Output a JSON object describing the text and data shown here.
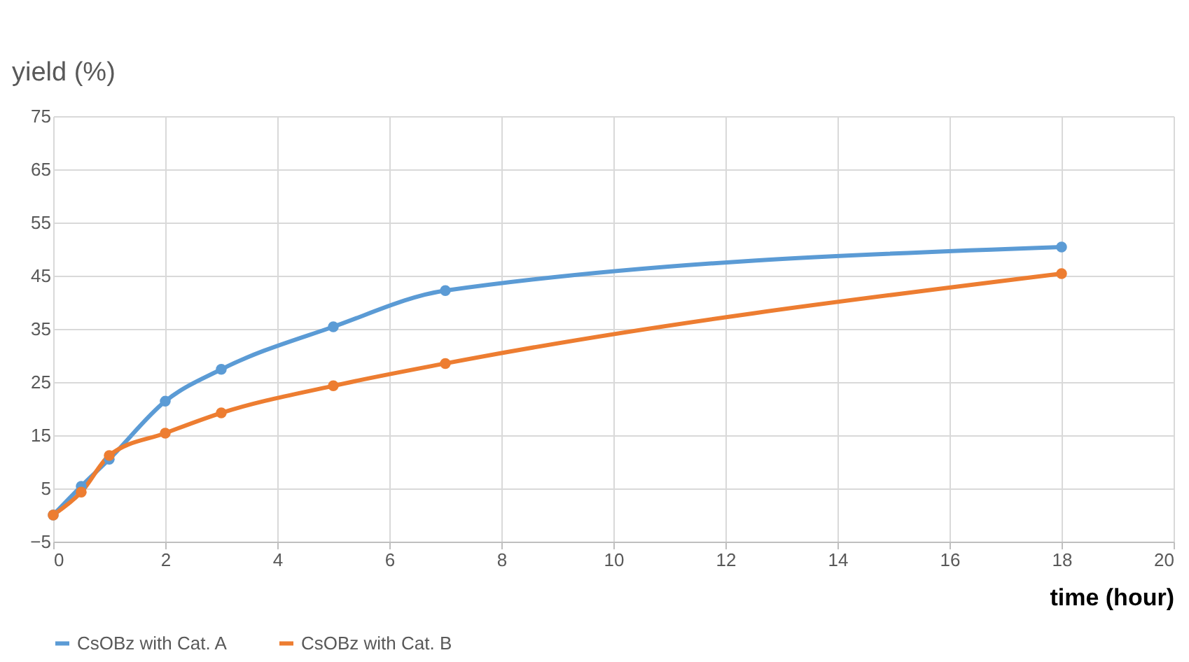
{
  "chart_data": {
    "type": "line",
    "xlabel": "time (hour)",
    "ylabel": "yield (%)",
    "x": [
      0,
      0.5,
      1,
      2,
      3,
      5,
      7,
      18
    ],
    "series": [
      {
        "name": "CsOBz with Cat. A",
        "color": "#5b9bd5",
        "values": [
          0,
          5.4,
          10.5,
          21.4,
          27.4,
          35.4,
          42.2,
          50.4
        ]
      },
      {
        "name": "CsOBz with Cat. B",
        "color": "#ed7d31",
        "values": [
          0,
          4.3,
          11.2,
          15.4,
          19.2,
          24.3,
          28.5,
          45.4
        ]
      }
    ],
    "xlim": [
      0,
      20
    ],
    "xticks": [
      0,
      2,
      4,
      6,
      8,
      10,
      12,
      14,
      16,
      18,
      20
    ],
    "ylim": [
      -5,
      75
    ],
    "yticks": [
      -5,
      5,
      15,
      25,
      35,
      45,
      55,
      65,
      75
    ],
    "grid": true,
    "legend": "bottom",
    "marker": "circle",
    "line_style": "solid"
  }
}
